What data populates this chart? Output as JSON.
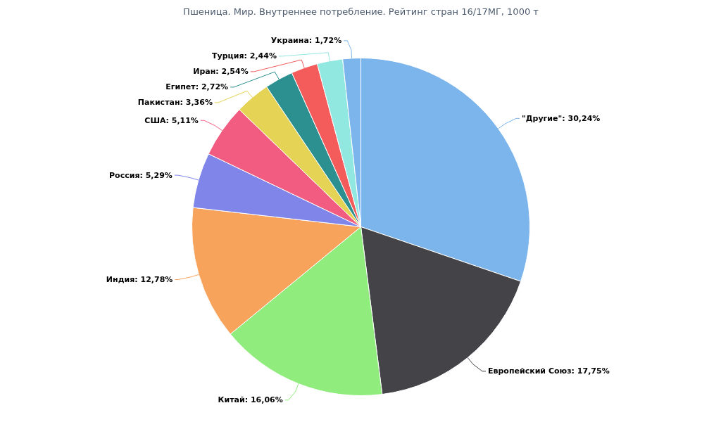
{
  "chart_data": {
    "type": "pie",
    "title": "Пшеница. Мир. Внутреннее потребление. Рейтинг стран 16/17МГ, 1000 т",
    "categories": [
      "\"Другие\"",
      "Европейский Союз",
      "Китай",
      "Индия",
      "Россия",
      "США",
      "Пакистан",
      "Египет",
      "Иран",
      "Турция",
      "Украина"
    ],
    "values": [
      30.24,
      17.75,
      16.06,
      12.78,
      5.29,
      5.11,
      3.36,
      2.72,
      2.54,
      2.44,
      1.72
    ],
    "value_labels": [
      "30,24%",
      "17,75%",
      "16,06%",
      "12,78%",
      "5,29%",
      "5,11%",
      "3,36%",
      "2,72%",
      "2,54%",
      "2,44%",
      "1,72%"
    ],
    "colors": [
      "#7cb5ec",
      "#434348",
      "#90ed7d",
      "#f7a35c",
      "#8085e9",
      "#f15c80",
      "#e4d354",
      "#2b908f",
      "#f45b5b",
      "#91e8e1",
      "#7cb5ec"
    ]
  }
}
